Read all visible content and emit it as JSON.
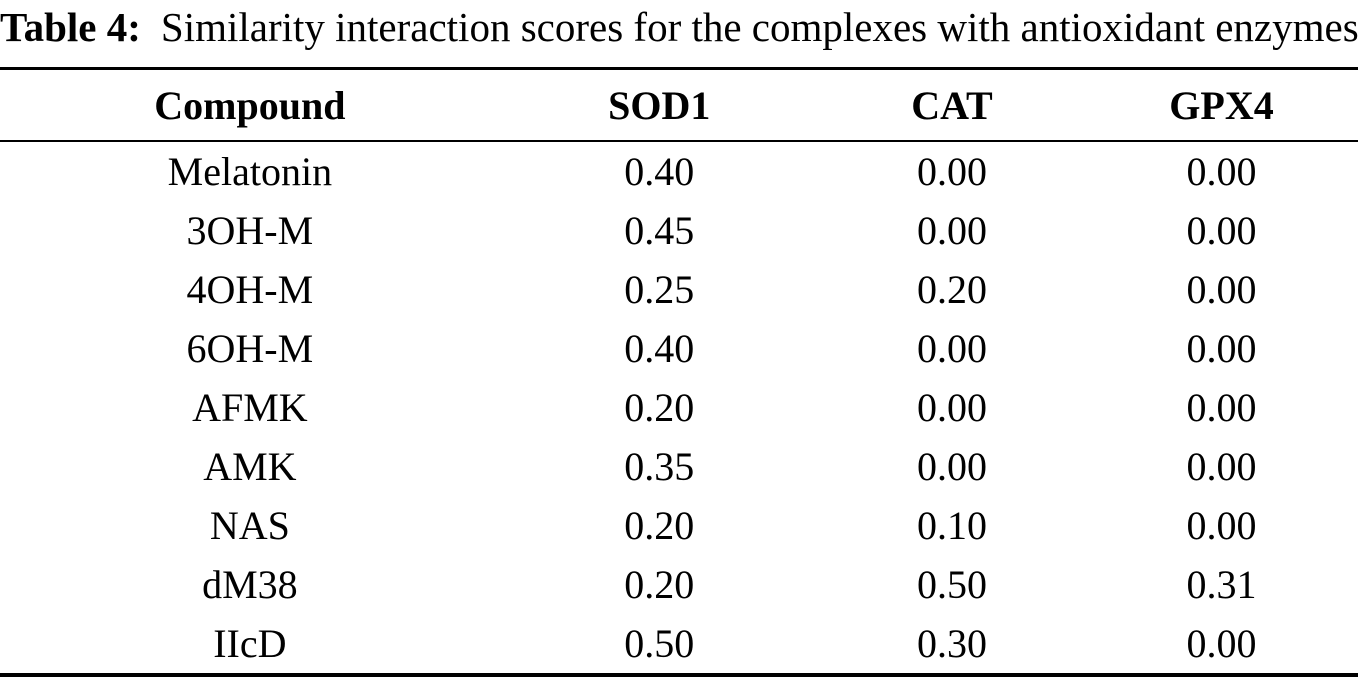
{
  "caption": {
    "label": "Table 4:",
    "text": "Similarity interaction scores for the complexes with antioxidant enzymes"
  },
  "table": {
    "columns": [
      "Compound",
      "SOD1",
      "CAT",
      "GPX4"
    ],
    "rows": [
      {
        "compound": "Melatonin",
        "values": [
          "0.40",
          "0.00",
          "0.00"
        ]
      },
      {
        "compound": "3OH-M",
        "values": [
          "0.45",
          "0.00",
          "0.00"
        ]
      },
      {
        "compound": "4OH-M",
        "values": [
          "0.25",
          "0.20",
          "0.00"
        ]
      },
      {
        "compound": "6OH-M",
        "values": [
          "0.40",
          "0.00",
          "0.00"
        ]
      },
      {
        "compound": "AFMK",
        "values": [
          "0.20",
          "0.00",
          "0.00"
        ]
      },
      {
        "compound": "AMK",
        "values": [
          "0.35",
          "0.00",
          "0.00"
        ]
      },
      {
        "compound": "NAS",
        "values": [
          "0.20",
          "0.10",
          "0.00"
        ]
      },
      {
        "compound": "dM38",
        "values": [
          "0.20",
          "0.50",
          "0.31"
        ]
      },
      {
        "compound": "IIcD",
        "values": [
          "0.50",
          "0.30",
          "0.00"
        ]
      }
    ]
  },
  "colors": {
    "text": "#000000",
    "background": "#ffffff",
    "rule": "#000000"
  }
}
